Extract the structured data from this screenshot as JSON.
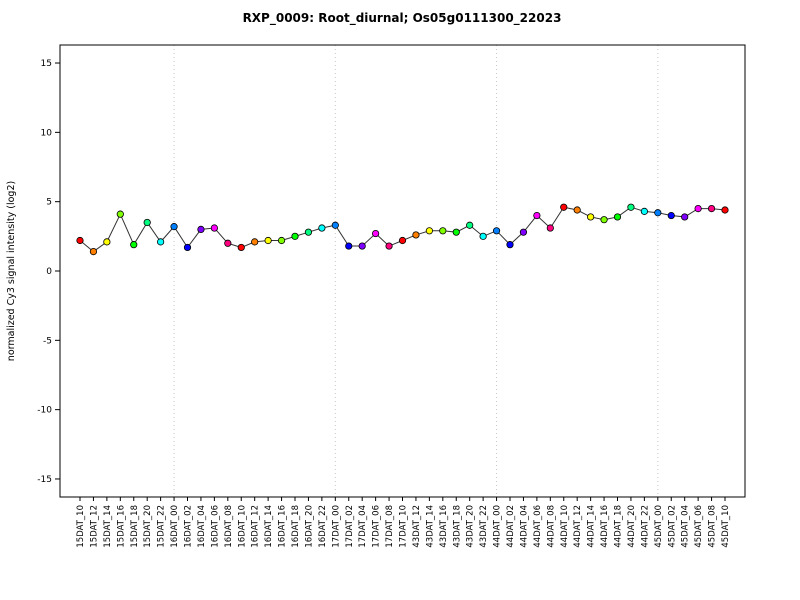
{
  "page": {
    "background": "#FFFFFF"
  },
  "chart_data": {
    "type": "line",
    "title": "RXP_0009: Root_diurnal; Os05g0111300_22023",
    "ylabel": "normalized Cy3 signal intensity (log2)",
    "xlabel": "",
    "ylim": [
      -16.3,
      16.3
    ],
    "yticks": [
      -15,
      -10,
      -5,
      0,
      5,
      10,
      15
    ],
    "grid": {
      "vertical_dotted_at": [
        "16DAT_00",
        "17DAT_00",
        "44DAT_00",
        "45DAT_00"
      ],
      "grid_color": "#C8C8C8"
    },
    "line_color": "#333333",
    "marker": {
      "radius": 3.2,
      "stroke": "#000000"
    },
    "color_cycle_palette": [
      "#FF0000",
      "#FF8000",
      "#FFFF00",
      "#80FF00",
      "#00FF00",
      "#00FF80",
      "#00FFFF",
      "#0080FF",
      "#0000FF",
      "#8000FF",
      "#FF00FF",
      "#FF0080"
    ],
    "categories": [
      "15DAT_10",
      "15DAT_12",
      "15DAT_14",
      "15DAT_16",
      "15DAT_18",
      "15DAT_20",
      "15DAT_22",
      "16DAT_00",
      "16DAT_02",
      "16DAT_04",
      "16DAT_06",
      "16DAT_08",
      "16DAT_10",
      "16DAT_12",
      "16DAT_14",
      "16DAT_16",
      "16DAT_18",
      "16DAT_20",
      "16DAT_22",
      "17DAT_00",
      "17DAT_02",
      "17DAT_04",
      "17DAT_06",
      "17DAT_08",
      "17DAT_10",
      "43DAT_12",
      "43DAT_14",
      "43DAT_16",
      "43DAT_18",
      "43DAT_20",
      "43DAT_22",
      "44DAT_00",
      "44DAT_02",
      "44DAT_04",
      "44DAT_06",
      "44DAT_08",
      "44DAT_10",
      "44DAT_12",
      "44DAT_14",
      "44DAT_16",
      "44DAT_18",
      "44DAT_20",
      "44DAT_22",
      "45DAT_00",
      "45DAT_02",
      "45DAT_04",
      "45DAT_06",
      "45DAT_08",
      "45DAT_10"
    ],
    "values": [
      2.2,
      1.4,
      2.1,
      4.1,
      1.9,
      3.5,
      2.1,
      3.2,
      1.7,
      3.0,
      3.1,
      2.0,
      1.7,
      2.1,
      2.2,
      2.2,
      2.5,
      2.8,
      3.1,
      3.3,
      1.8,
      1.8,
      2.7,
      1.8,
      2.2,
      2.6,
      2.9,
      2.9,
      2.8,
      3.3,
      2.5,
      2.9,
      1.9,
      2.8,
      4.0,
      3.1,
      4.6,
      4.4,
      3.9,
      3.7,
      3.9,
      4.6,
      4.3,
      4.2,
      4.0,
      3.9,
      4.5,
      4.5,
      4.4
    ],
    "point_colors": [
      "#FF0000",
      "#FF8000",
      "#FFFF00",
      "#80FF00",
      "#00FF00",
      "#00FF80",
      "#00FFFF",
      "#0080FF",
      "#0000FF",
      "#8000FF",
      "#FF00FF",
      "#FF0080",
      "#FF0000",
      "#FF8000",
      "#FFFF00",
      "#80FF00",
      "#00FF00",
      "#00FF80",
      "#00FFFF",
      "#0080FF",
      "#0000FF",
      "#8000FF",
      "#FF00FF",
      "#FF0080",
      "#FF0000",
      "#FF8000",
      "#FFFF00",
      "#80FF00",
      "#00FF00",
      "#00FF80",
      "#00FFFF",
      "#0080FF",
      "#0000FF",
      "#8000FF",
      "#FF00FF",
      "#FF0080",
      "#FF0000",
      "#FF8000",
      "#FFFF00",
      "#80FF00",
      "#00FF00",
      "#00FF80",
      "#00FFFF",
      "#0080FF",
      "#0000FF",
      "#8000FF",
      "#FF00FF",
      "#FF0080",
      "#FF0000"
    ]
  }
}
